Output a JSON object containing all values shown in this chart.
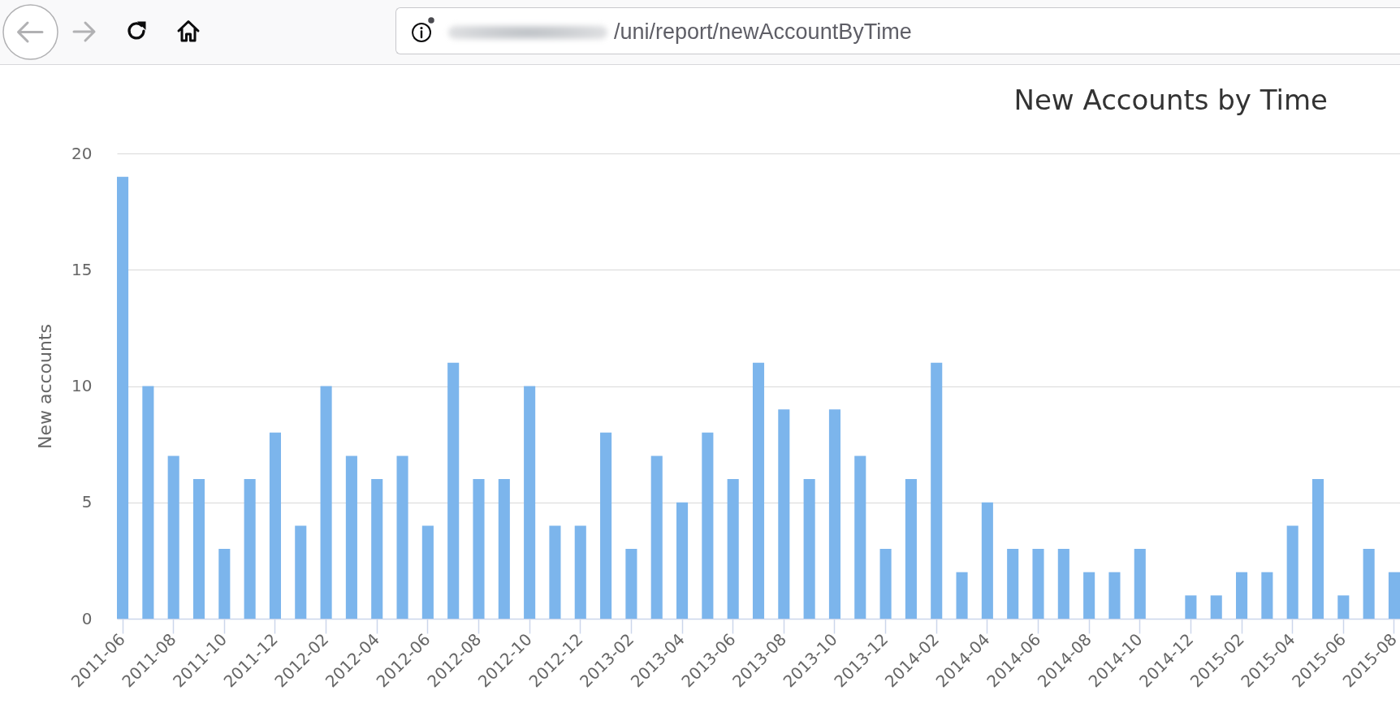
{
  "chart_data": {
    "type": "bar",
    "title": "New Accounts by Time",
    "ylabel": "New accounts",
    "annotations": [
      "/uni/report/newAccountByTime"
    ],
    "categories": [
      "2011-06",
      null,
      "2011-08",
      null,
      "2011-10",
      null,
      "2011-12",
      null,
      "2012-02",
      null,
      "2012-04",
      null,
      "2012-06",
      null,
      "2012-08",
      null,
      "2012-10",
      null,
      "2012-12",
      null,
      "2013-02",
      null,
      "2013-04",
      null,
      "2013-06",
      null,
      "2013-08",
      null,
      "2013-10",
      null,
      "2013-12",
      null,
      "2014-02",
      null,
      "2014-04",
      null,
      "2014-06",
      null,
      "2014-08",
      null,
      "2014-10",
      null,
      "2014-12",
      null,
      "2015-02",
      null,
      "2015-04",
      null,
      "2015-06",
      null,
      "2015-08"
    ],
    "values": [
      19,
      10,
      7,
      6,
      3,
      6,
      8,
      4,
      10,
      7,
      6,
      7,
      4,
      11,
      6,
      6,
      10,
      4,
      4,
      8,
      3,
      7,
      5,
      8,
      6,
      11,
      9,
      6,
      9,
      7,
      3,
      6,
      11,
      2,
      5,
      3,
      3,
      3,
      2,
      2,
      3,
      null,
      1,
      1,
      2,
      2,
      4,
      6,
      1,
      3,
      2
    ],
    "color": "#7cb5ec",
    "ylim": [
      0,
      20
    ],
    "yticks": [
      0,
      5,
      10,
      15,
      20
    ],
    "grid": "y"
  }
}
